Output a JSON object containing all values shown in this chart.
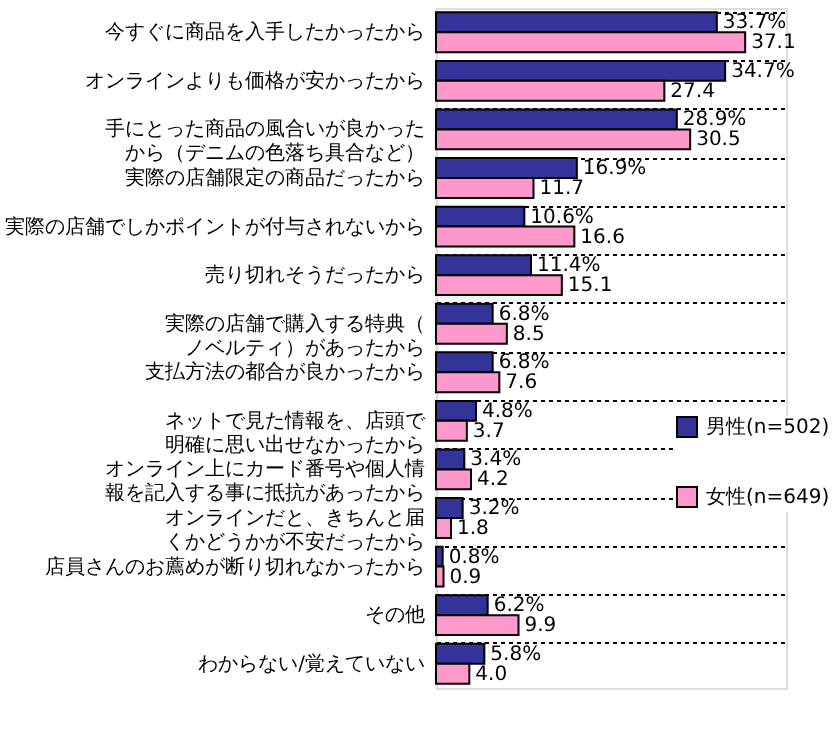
{
  "chart_data": {
    "type": "bar",
    "orientation": "horizontal",
    "categories": [
      "今すぐに商品を入手したかったから",
      "オンラインよりも価格が安かったから",
      "手にとった商品の風合いが良かったから（デニムの色落ち具合など）",
      "実際の店舗限定の商品だったから",
      "実際の店舗でしかポイントが付与されないから",
      "売り切れそうだったから",
      "実際の店舗で購入する特典（ノベルティ）があったから",
      "支払方法の都合が良かったから",
      "ネットで見た情報を、店頭で明確に思い出せなかったから",
      "オンライン上にカード番号や個人情報を記入する事に抵抗があったから",
      "オンラインだと、きちんと届くかどうかが不安だったから",
      "店員さんのお薦めが断り切れなかったから",
      "その他",
      "わからない/覚えていない"
    ],
    "series": [
      {
        "name": "男性(n=502)",
        "color": "#333399",
        "values": [
          33.7,
          34.7,
          28.9,
          16.9,
          10.6,
          11.4,
          6.8,
          6.8,
          4.8,
          3.4,
          3.2,
          0.8,
          6.2,
          5.8
        ],
        "value_labels": [
          "33.7%",
          "34.7%",
          "28.9%",
          "16.9%",
          "10.6%",
          "11.4%",
          "6.8%",
          "6.8%",
          "4.8%",
          "3.4%",
          "3.2%",
          "0.8%",
          "6.2%",
          "5.8%"
        ]
      },
      {
        "name": "女性(n=649)",
        "color": "#ff99cc",
        "values": [
          37.1,
          27.4,
          30.5,
          11.7,
          16.6,
          15.1,
          8.5,
          7.6,
          3.7,
          4.2,
          1.8,
          0.9,
          9.9,
          4.0
        ],
        "value_labels": [
          "37.1",
          "27.4",
          "30.5",
          "11.7",
          "16.6",
          "15.1",
          "8.5",
          "7.6",
          "3.7",
          "4.2",
          "1.8",
          "0.9",
          "9.9",
          "4.0"
        ]
      }
    ],
    "xlim": [
      0,
      42
    ],
    "tick_labels": "y",
    "grid": "y",
    "legend": "right"
  }
}
